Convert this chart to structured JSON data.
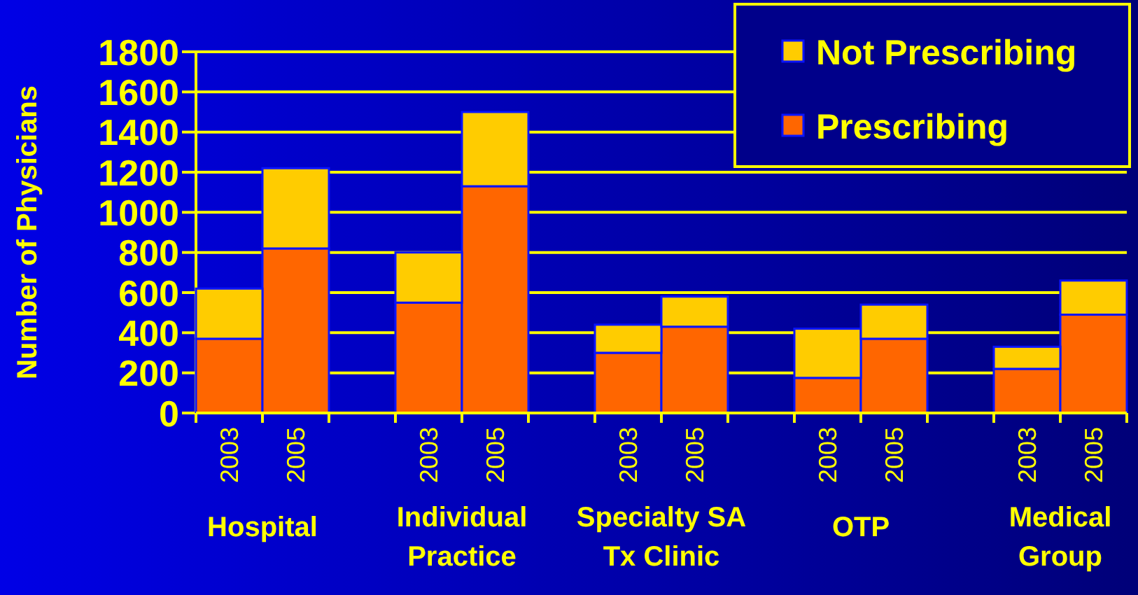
{
  "chart_data": {
    "type": "bar",
    "stacked": true,
    "ylabel": "Number of Physicians",
    "categories": [
      "2003",
      "2005",
      "2003",
      "2005",
      "2003",
      "2005",
      "2003",
      "2005",
      "2003",
      "2005"
    ],
    "series": [
      {
        "name": "Prescribing",
        "color": "#ff6600",
        "values": [
          370,
          820,
          550,
          1130,
          300,
          430,
          175,
          370,
          220,
          490
        ]
      },
      {
        "name": "Not Prescribing",
        "color": "#ffcc00",
        "values": [
          250,
          400,
          250,
          370,
          140,
          150,
          245,
          170,
          110,
          170
        ]
      }
    ],
    "annotations": [
      "Hospital",
      "Individual Practice",
      "Specialty SA Tx Clinic",
      "OTP",
      "Medical Group"
    ],
    "ylim": [
      0,
      1800
    ],
    "yticks": [
      0,
      200,
      400,
      600,
      800,
      1000,
      1200,
      1400,
      1600,
      1800
    ],
    "grid": "y",
    "legend": "top right"
  }
}
